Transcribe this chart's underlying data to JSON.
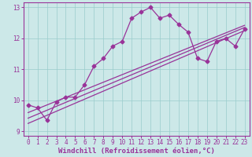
{
  "xlabel": "Windchill (Refroidissement éolien,°C)",
  "ylabel": "",
  "bg_color": "#cce8e8",
  "line_color": "#993399",
  "grid_color": "#99cccc",
  "xlim": [
    -0.5,
    23.5
  ],
  "ylim": [
    8.85,
    13.15
  ],
  "yticks": [
    9,
    10,
    11,
    12,
    13
  ],
  "xticks": [
    0,
    1,
    2,
    3,
    4,
    5,
    6,
    7,
    8,
    9,
    10,
    11,
    12,
    13,
    14,
    15,
    16,
    17,
    18,
    19,
    20,
    21,
    22,
    23
  ],
  "line1_x": [
    0,
    1,
    2,
    3,
    4,
    5,
    6,
    7,
    8,
    9,
    10,
    11,
    12,
    13,
    14,
    15,
    16,
    17,
    18,
    19,
    20,
    21,
    22,
    23
  ],
  "line1_y": [
    9.85,
    9.75,
    9.35,
    9.95,
    10.1,
    10.1,
    10.5,
    11.1,
    11.35,
    11.75,
    11.9,
    12.65,
    12.85,
    13.0,
    12.65,
    12.75,
    12.45,
    12.2,
    11.35,
    11.25,
    11.9,
    12.0,
    11.75,
    12.3
  ],
  "line2_x": [
    0,
    23
  ],
  "line2_y": [
    9.25,
    12.25
  ],
  "line3_x": [
    0,
    23
  ],
  "line3_y": [
    9.42,
    12.35
  ],
  "line4_x": [
    0,
    23
  ],
  "line4_y": [
    9.6,
    12.42
  ],
  "marker": "D",
  "markersize": 2.5,
  "linewidth": 0.9,
  "tick_fontsize": 5.5,
  "label_fontsize": 6.5
}
